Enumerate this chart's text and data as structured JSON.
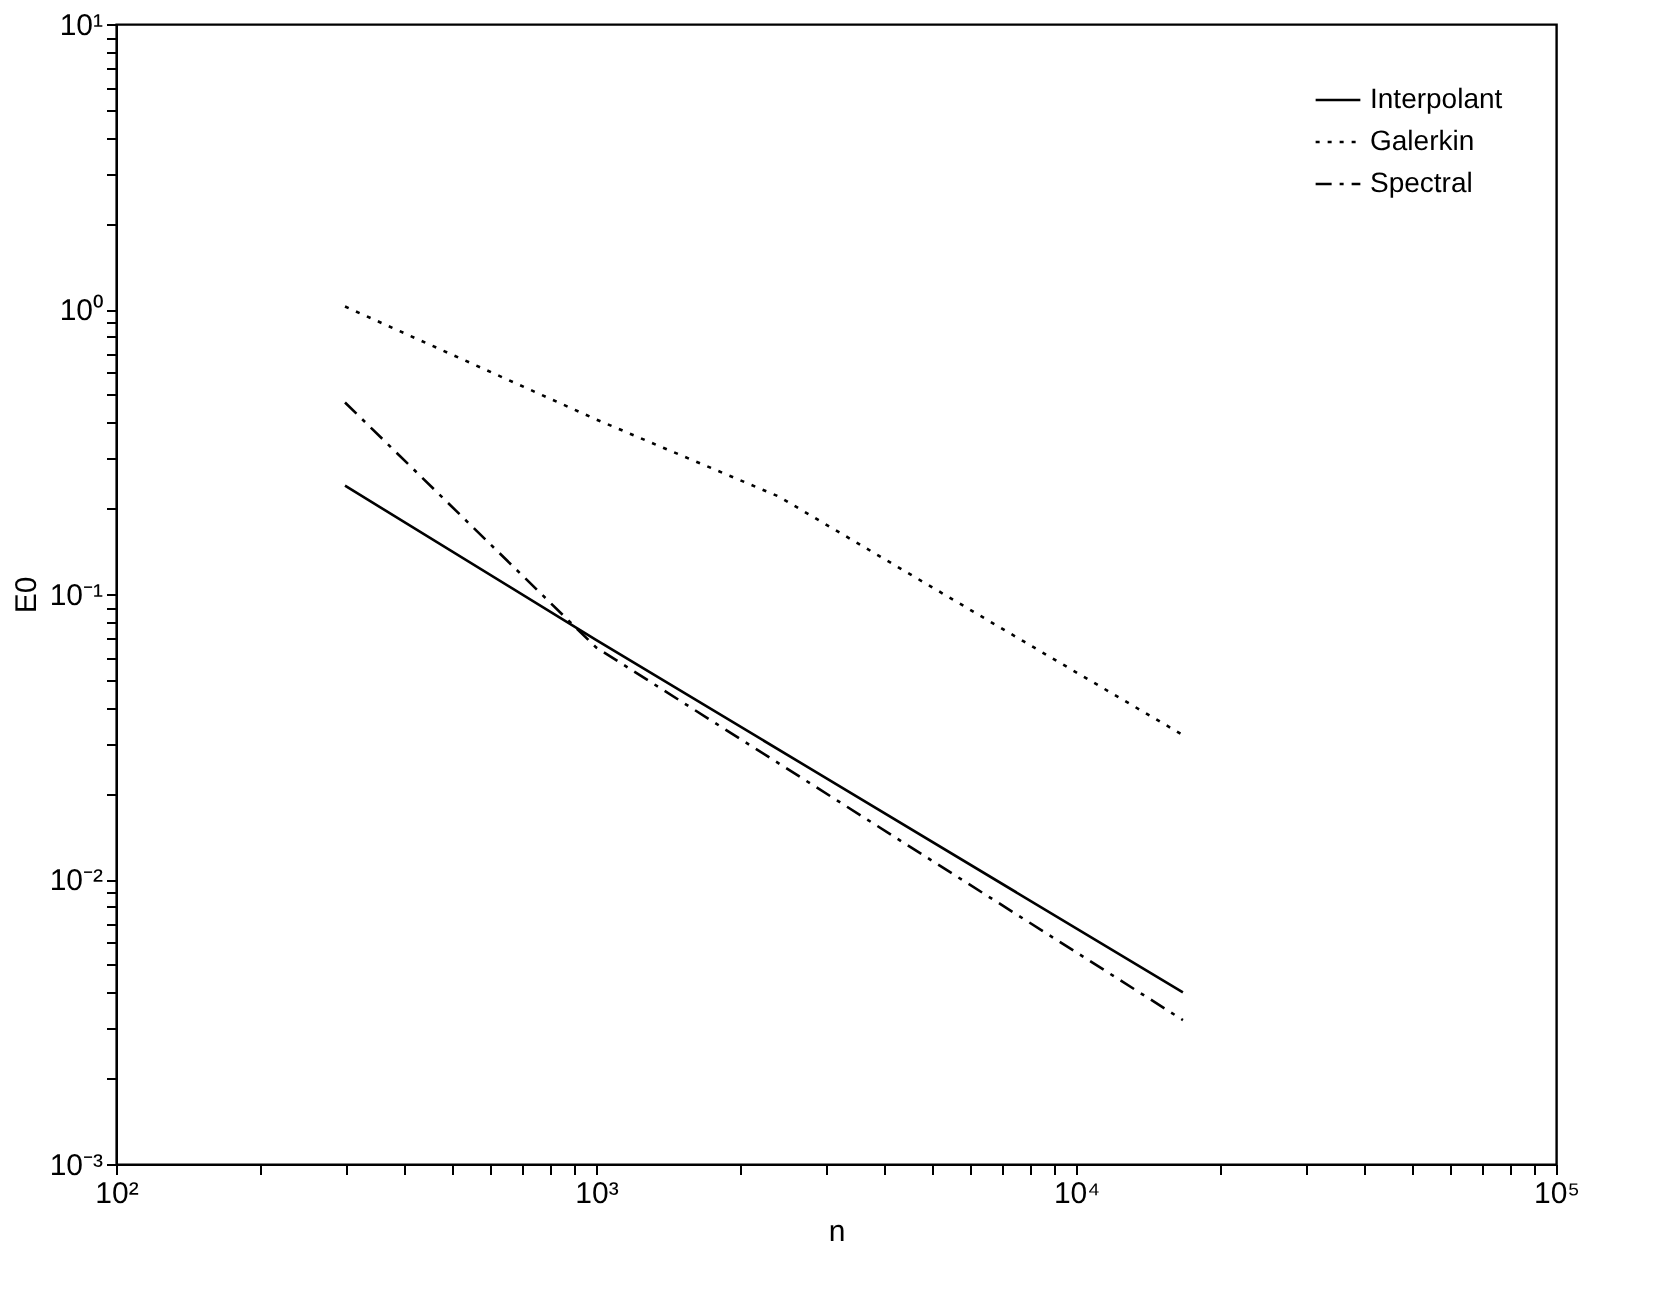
{
  "chart_data": {
    "type": "line",
    "xlabel": "n",
    "ylabel": "E0",
    "log": "xy",
    "grid": false,
    "legend": "top right",
    "marker": "none",
    "xlim": [
      100,
      100000
    ],
    "xticks": [
      {
        "value": 100,
        "label": "10²"
      },
      {
        "value": 200,
        "label": null
      },
      {
        "value": 300,
        "label": null
      },
      {
        "value": 400,
        "label": null
      },
      {
        "value": 500,
        "label": null
      },
      {
        "value": 600,
        "label": null
      },
      {
        "value": 700,
        "label": null
      },
      {
        "value": 800,
        "label": null
      },
      {
        "value": 900,
        "label": null
      },
      {
        "value": 1000,
        "label": "10³"
      },
      {
        "value": 2000,
        "label": null
      },
      {
        "value": 3000,
        "label": null
      },
      {
        "value": 4000,
        "label": null
      },
      {
        "value": 5000,
        "label": null
      },
      {
        "value": 6000,
        "label": null
      },
      {
        "value": 7000,
        "label": null
      },
      {
        "value": 8000,
        "label": null
      },
      {
        "value": 9000,
        "label": null
      },
      {
        "value": 10000,
        "label": "10⁴"
      },
      {
        "value": 20000,
        "label": null
      },
      {
        "value": 30000,
        "label": null
      },
      {
        "value": 40000,
        "label": null
      },
      {
        "value": 50000,
        "label": null
      },
      {
        "value": 60000,
        "label": null
      },
      {
        "value": 70000,
        "label": null
      },
      {
        "value": 80000,
        "label": null
      },
      {
        "value": 90000,
        "label": null
      },
      {
        "value": 100000,
        "label": "10⁵"
      }
    ],
    "ylim": [
      0.001,
      10
    ],
    "yticks": [
      {
        "value": 0.001,
        "label": "10⁻³"
      },
      {
        "value": 0.002,
        "label": null
      },
      {
        "value": 0.003,
        "label": null
      },
      {
        "value": 0.004,
        "label": null
      },
      {
        "value": 0.005,
        "label": null
      },
      {
        "value": 0.006,
        "label": null
      },
      {
        "value": 0.007,
        "label": null
      },
      {
        "value": 0.008,
        "label": null
      },
      {
        "value": 0.009,
        "label": null
      },
      {
        "value": 0.01,
        "label": "10⁻²"
      },
      {
        "value": 0.02,
        "label": null
      },
      {
        "value": 0.03,
        "label": null
      },
      {
        "value": 0.04,
        "label": null
      },
      {
        "value": 0.05,
        "label": null
      },
      {
        "value": 0.06,
        "label": null
      },
      {
        "value": 0.07,
        "label": null
      },
      {
        "value": 0.08,
        "label": null
      },
      {
        "value": 0.09,
        "label": null
      },
      {
        "value": 0.1,
        "label": "10⁻¹"
      },
      {
        "value": 0.2,
        "label": null
      },
      {
        "value": 0.3,
        "label": null
      },
      {
        "value": 0.4,
        "label": null
      },
      {
        "value": 0.5,
        "label": null
      },
      {
        "value": 0.6,
        "label": null
      },
      {
        "value": 0.7,
        "label": null
      },
      {
        "value": 0.8,
        "label": null
      },
      {
        "value": 0.9,
        "label": null
      },
      {
        "value": 1,
        "label": "10⁰"
      },
      {
        "value": 2,
        "label": null
      },
      {
        "value": 3,
        "label": null
      },
      {
        "value": 4,
        "label": null
      },
      {
        "value": 5,
        "label": null
      },
      {
        "value": 6,
        "label": null
      },
      {
        "value": 7,
        "label": null
      },
      {
        "value": 8,
        "label": null
      },
      {
        "value": 9,
        "label": null
      },
      {
        "value": 10,
        "label": "10¹"
      }
    ],
    "series": [
      {
        "name": "Interpolant",
        "color": "#000000",
        "line_style": "solid",
        "x": [
          300,
          1000,
          16700
        ],
        "values": [
          0.24,
          0.069,
          0.004
        ]
      },
      {
        "name": "Galerkin",
        "color": "#000000",
        "line_style": "dotted",
        "x": [
          300,
          1000,
          2400,
          7800,
          16700
        ],
        "values": [
          1.02,
          0.41,
          0.22,
          0.068,
          0.032
        ]
      },
      {
        "name": "Spectral",
        "color": "#000000",
        "line_style": "dashdot",
        "x": [
          300,
          1000,
          16700
        ],
        "values": [
          0.47,
          0.065,
          0.0032
        ]
      }
    ]
  }
}
